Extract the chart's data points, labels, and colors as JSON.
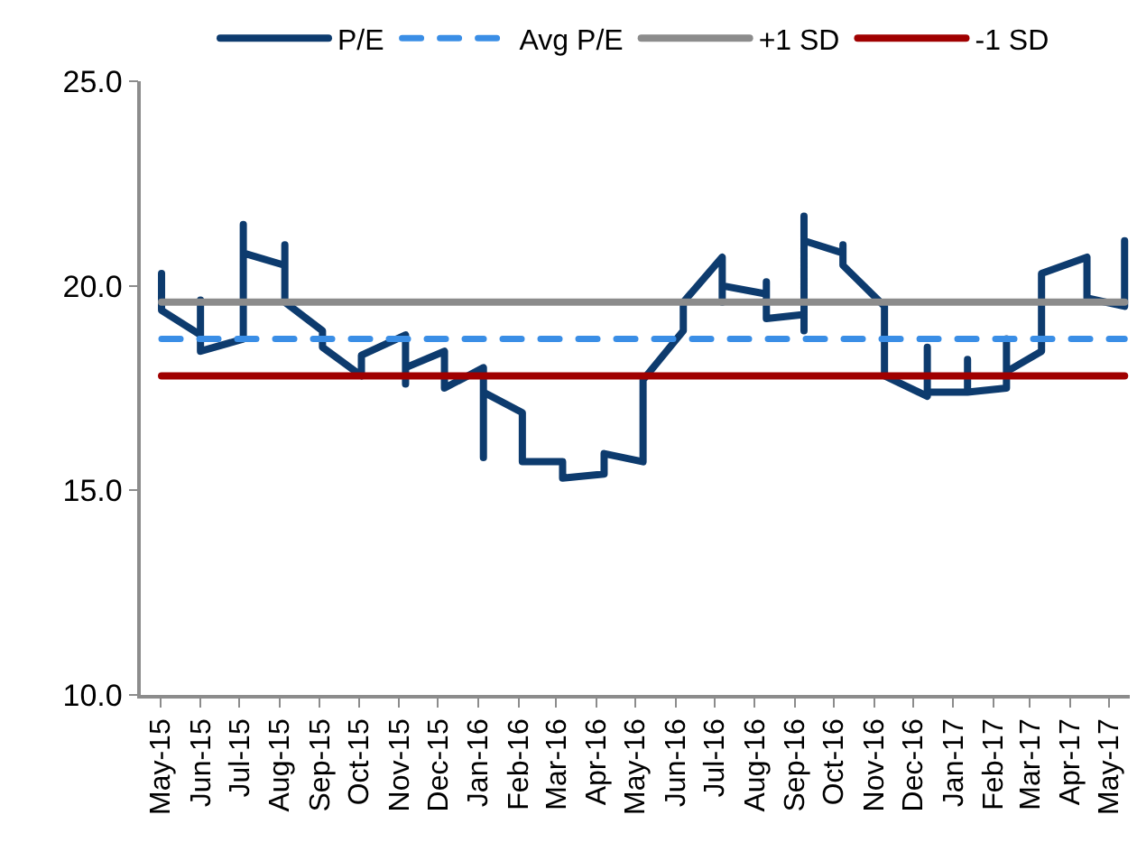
{
  "chart_data": {
    "type": "line",
    "x": [
      "2015-05-17",
      "2015-05-17",
      "2015-06-16",
      "2015-06-16",
      "2015-06-16",
      "2015-07-19",
      "2015-07-19",
      "2015-07-19",
      "2015-08-20",
      "2015-08-20",
      "2015-08-20",
      "2015-09-18",
      "2015-09-18",
      "2015-10-18",
      "2015-10-18",
      "2015-11-21",
      "2015-11-21",
      "2015-11-21",
      "2015-12-21",
      "2015-12-21",
      "2016-01-20",
      "2016-01-20",
      "2016-01-20",
      "2016-02-19",
      "2016-02-19",
      "2016-03-21",
      "2016-03-21",
      "2016-04-22",
      "2016-04-22",
      "2016-05-22",
      "2016-05-22",
      "2016-06-22",
      "2016-06-22",
      "2016-07-22",
      "2016-07-22",
      "2016-07-22",
      "2016-08-25",
      "2016-08-25",
      "2016-08-25",
      "2016-09-23",
      "2016-09-23",
      "2016-09-23",
      "2016-09-23",
      "2016-10-23",
      "2016-10-23",
      "2016-10-23",
      "2016-11-24",
      "2016-11-24",
      "2016-12-27",
      "2016-12-27",
      "2016-12-27",
      "2017-01-27",
      "2017-01-27",
      "2017-01-27",
      "2017-02-26",
      "2017-02-26",
      "2017-02-26",
      "2017-03-25",
      "2017-03-25",
      "2017-04-29",
      "2017-04-29",
      "2017-05-28",
      "2017-05-28"
    ],
    "series": [
      {
        "name": "P/E",
        "color": "#0d3b6e",
        "values": [
          20.3,
          19.4,
          18.8,
          19.65,
          18.4,
          18.7,
          21.5,
          20.8,
          20.5,
          21.0,
          19.6,
          18.9,
          18.5,
          17.8,
          18.3,
          18.8,
          17.6,
          18.0,
          18.4,
          17.5,
          18.0,
          15.8,
          17.4,
          16.9,
          15.7,
          15.7,
          15.3,
          15.4,
          15.9,
          15.7,
          17.7,
          18.9,
          19.6,
          20.7,
          19.6,
          20.0,
          19.8,
          20.1,
          19.2,
          19.3,
          18.9,
          21.7,
          21.1,
          20.8,
          21.0,
          20.5,
          19.5,
          17.8,
          17.3,
          18.5,
          17.4,
          17.4,
          18.2,
          17.4,
          17.5,
          18.7,
          17.9,
          18.4,
          20.3,
          20.7,
          19.7,
          19.5,
          21.1
        ]
      },
      {
        "name": "Avg P/E",
        "color": "#3a8ee6",
        "line_style": "dashed",
        "x": [
          "2015-05-17",
          "2017-05-28"
        ],
        "values": [
          18.7,
          18.7
        ]
      },
      {
        "name": "+1 SD",
        "color": "#8c8c8c",
        "x": [
          "2015-05-17",
          "2017-05-28"
        ],
        "values": [
          19.6,
          19.6
        ]
      },
      {
        "name": "-1 SD",
        "color": "#a00000",
        "x": [
          "2015-05-17",
          "2017-05-28"
        ],
        "values": [
          17.8,
          17.8
        ]
      }
    ],
    "xlim": [
      "2015-05-01",
      "2017-06-01"
    ],
    "xticks": [
      {
        "value": "2015-05-16",
        "label": "May-15"
      },
      {
        "value": "2015-06-16",
        "label": "Jun-15"
      },
      {
        "value": "2015-07-16",
        "label": "Jul-15"
      },
      {
        "value": "2015-08-16",
        "label": "Aug-15"
      },
      {
        "value": "2015-09-16",
        "label": "Sep-15"
      },
      {
        "value": "2015-10-16",
        "label": "Oct-15"
      },
      {
        "value": "2015-11-16",
        "label": "Nov-15"
      },
      {
        "value": "2015-12-16",
        "label": "Dec-15"
      },
      {
        "value": "2016-01-16",
        "label": "Jan-16"
      },
      {
        "value": "2016-02-16",
        "label": "Feb-16"
      },
      {
        "value": "2016-03-16",
        "label": "Mar-16"
      },
      {
        "value": "2016-04-16",
        "label": "Apr-16"
      },
      {
        "value": "2016-05-16",
        "label": "May-16"
      },
      {
        "value": "2016-06-16",
        "label": "Jun-16"
      },
      {
        "value": "2016-07-16",
        "label": "Jul-16"
      },
      {
        "value": "2016-08-16",
        "label": "Aug-16"
      },
      {
        "value": "2016-09-16",
        "label": "Sep-16"
      },
      {
        "value": "2016-10-16",
        "label": "Oct-16"
      },
      {
        "value": "2016-11-16",
        "label": "Nov-16"
      },
      {
        "value": "2016-12-16",
        "label": "Dec-16"
      },
      {
        "value": "2017-01-16",
        "label": "Jan-17"
      },
      {
        "value": "2017-02-16",
        "label": "Feb-17"
      },
      {
        "value": "2017-03-16",
        "label": "Mar-17"
      },
      {
        "value": "2017-04-16",
        "label": "Apr-17"
      },
      {
        "value": "2017-05-16",
        "label": "May-17"
      }
    ],
    "ylim": [
      10,
      25
    ],
    "yticks": [
      {
        "value": 10,
        "label": "10.0"
      },
      {
        "value": 15,
        "label": "15.0"
      },
      {
        "value": 20,
        "label": "20.0"
      },
      {
        "value": 25,
        "label": "25.0"
      }
    ],
    "legend": "top",
    "marker": "none",
    "line_style": "solid"
  }
}
